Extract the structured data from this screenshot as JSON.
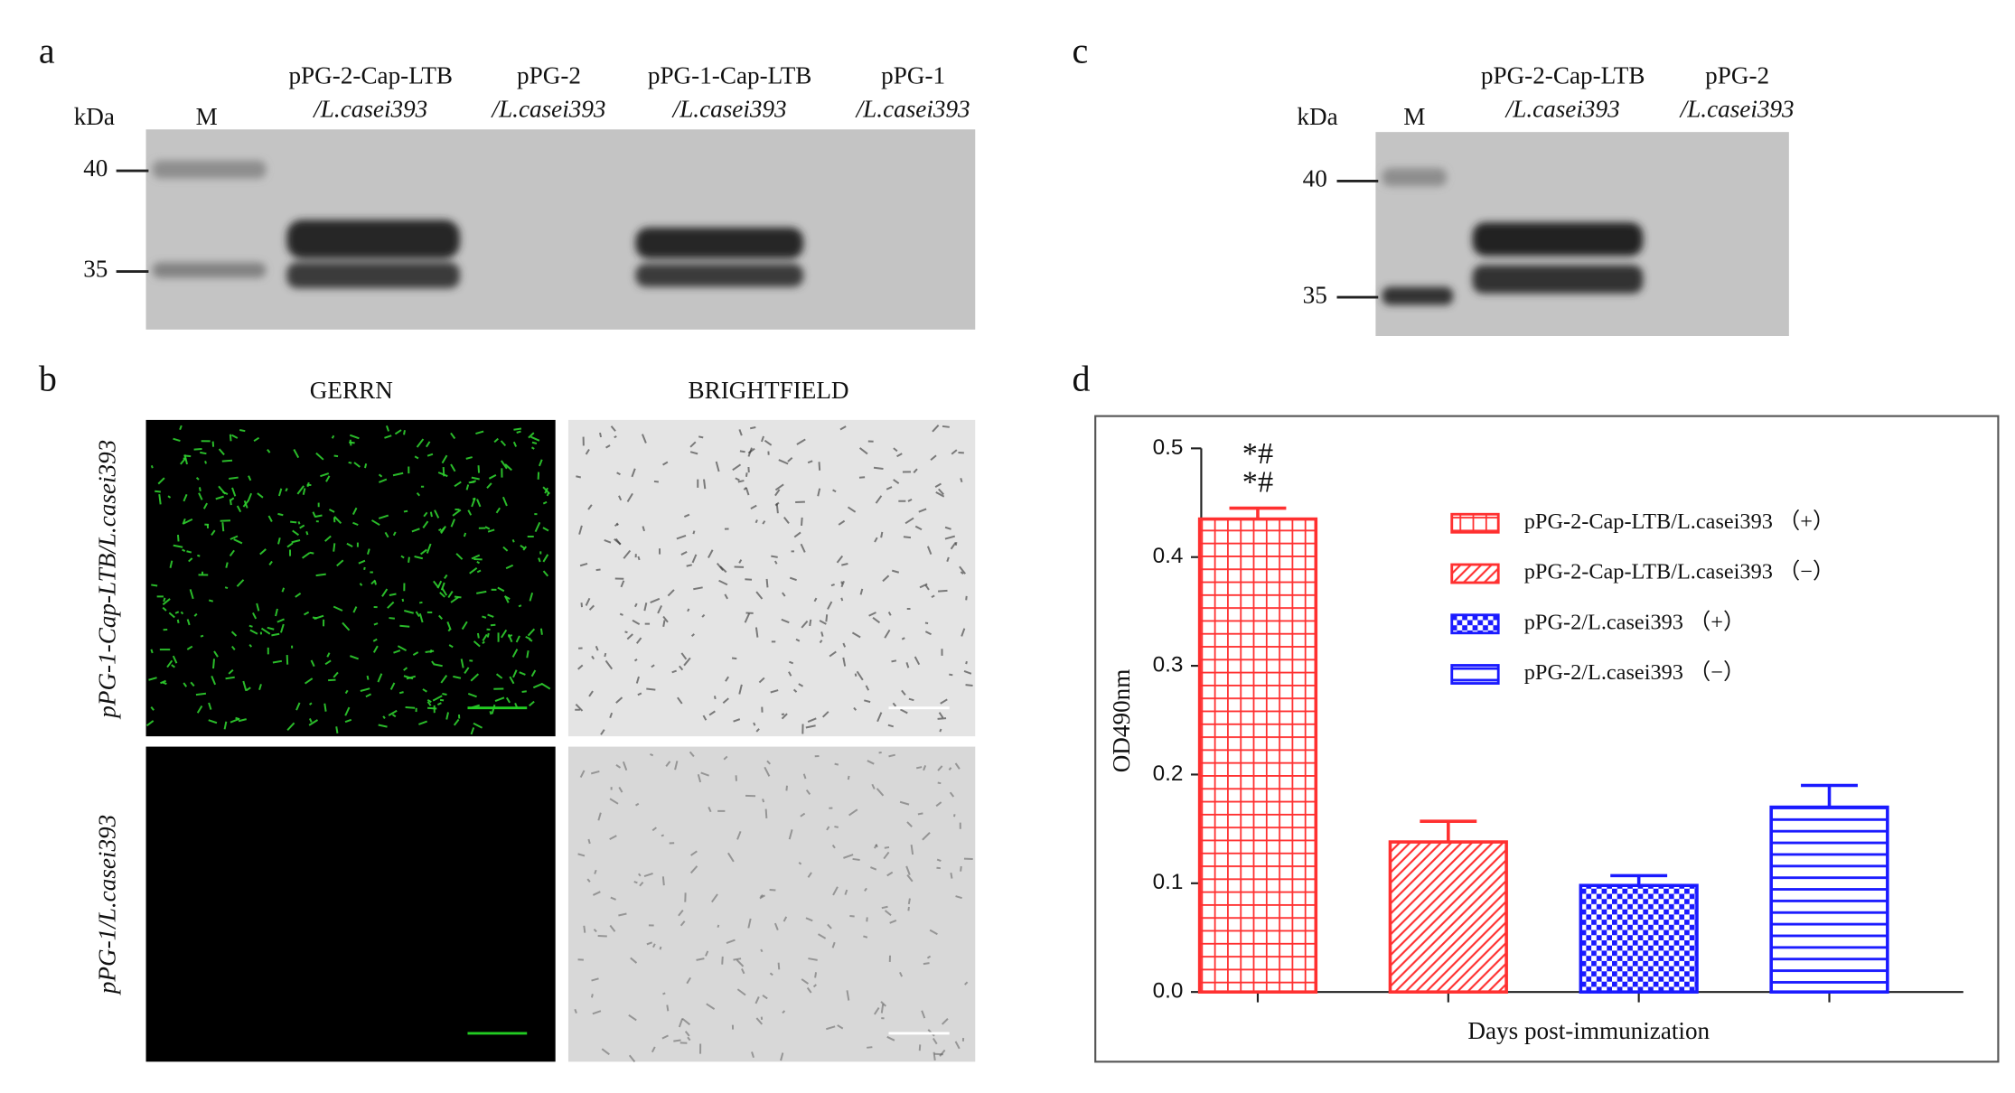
{
  "panel_a": {
    "letter": "a",
    "unit": "kDa",
    "marker_lane": "M",
    "lanes": [
      {
        "line1": "pPG-2-Cap-LTB",
        "line2": "/L.casei393"
      },
      {
        "line1": "pPG-2",
        "line2": "/L.casei393"
      },
      {
        "line1": "pPG-1-Cap-LTB",
        "line2": "/L.casei393"
      },
      {
        "line1": "pPG-1",
        "line2": "/L.casei393"
      }
    ],
    "markers": [
      "40",
      "35"
    ]
  },
  "panel_b": {
    "letter": "b",
    "columns": [
      "GERRN",
      "BRIGHTFIELD"
    ],
    "rows": [
      "pPG-1-Cap-LTB/L.casei393",
      "pPG-1/L.casei393"
    ]
  },
  "panel_c": {
    "letter": "c",
    "unit": "kDa",
    "marker_lane": "M",
    "lanes": [
      {
        "line1": "pPG-2-Cap-LTB",
        "line2": "/L.casei393"
      },
      {
        "line1": "pPG-2",
        "line2": "/L.casei393"
      }
    ],
    "markers": [
      "40",
      "35"
    ]
  },
  "panel_d_letter": "d",
  "chart_data": {
    "type": "bar",
    "x_label": "Days post-immunization",
    "y_label": "OD490nm",
    "categories": [
      null,
      null,
      null,
      null
    ],
    "series": [
      {
        "name": "pPG-2-Cap-LTB/L.casei393 （+）",
        "color": "#ff3030",
        "pattern": "grid",
        "values": [
          0.435,
          null,
          null,
          null
        ],
        "errors": [
          0.01,
          null,
          null,
          null
        ]
      },
      {
        "name": "pPG-2-Cap-LTB/L.casei393 （−）",
        "color": "#ff3030",
        "pattern": "hatch",
        "values": [
          null,
          0.138,
          null,
          null
        ],
        "errors": [
          null,
          0.019,
          null,
          null
        ]
      },
      {
        "name": "pPG-2/L.casei393 （+）",
        "color": "#1a1aff",
        "pattern": "checker",
        "values": [
          null,
          null,
          0.098,
          null
        ],
        "errors": [
          null,
          null,
          0.009,
          null
        ]
      },
      {
        "name": "pPG-2/L.casei393 （−）",
        "color": "#1a1aff",
        "pattern": "stripes",
        "values": [
          null,
          null,
          null,
          0.17
        ],
        "errors": [
          null,
          null,
          null,
          0.02
        ]
      }
    ],
    "annotations": [
      "*#",
      "*#"
    ],
    "ylim": [
      0,
      0.5
    ],
    "yticks": [
      {
        "value": 0,
        "label": "0.0"
      },
      0.1,
      0.2,
      0.3,
      0.4,
      0.5
    ]
  }
}
